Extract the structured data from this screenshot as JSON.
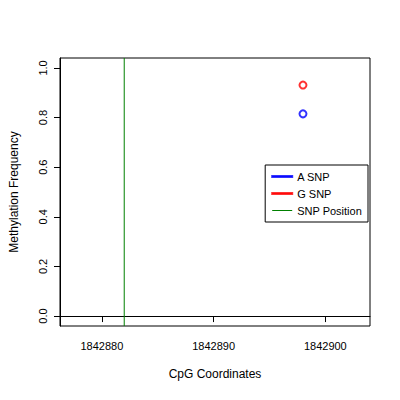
{
  "chart_data": {
    "type": "scatter",
    "x_label": "CpG Coordinates",
    "y_label": "Methylation Frequency",
    "xlim": [
      1842876.25,
      1842904.0
    ],
    "xticks": [
      1842880,
      1842890,
      1842900
    ],
    "ylim": [
      -0.04,
      1.04
    ],
    "yticks": [
      {
        "value": 0,
        "label": "0.0"
      },
      0.2,
      0.4,
      0.6,
      0.8,
      {
        "value": 1,
        "label": "1.0"
      }
    ],
    "grid": false,
    "legend": "right",
    "series": [
      {
        "name": "A SNP",
        "color": "blue",
        "marker": "open_circle",
        "x": [
          1842898
        ],
        "values": [
          0.815
        ]
      },
      {
        "name": "G SNP",
        "color": "red",
        "marker": "open_circle",
        "x": [
          1842898
        ],
        "values": [
          0.931
        ]
      },
      {
        "name": "SNP Position",
        "color": "green",
        "type": "vline",
        "x": [
          1842882
        ]
      }
    ]
  }
}
